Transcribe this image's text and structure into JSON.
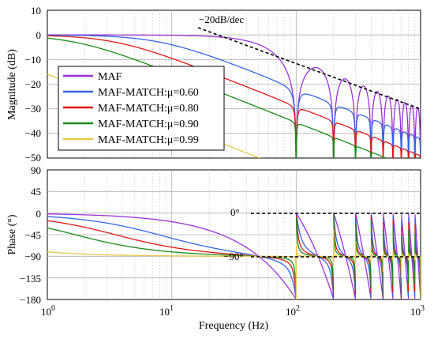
{
  "chart_data": [
    {
      "type": "line",
      "ylabel": "Magnitude (dB)",
      "x_scale": "log",
      "xlim": [
        1,
        1000
      ],
      "ylim": [
        -50,
        10
      ],
      "yticks": [
        "10",
        "0",
        "−10",
        "−20",
        "−30",
        "−40",
        "−50"
      ],
      "grid": true,
      "legend_position": "left-center",
      "annotation": "−20dB/dec",
      "series": [
        {
          "name": "MAF",
          "color": "#9b30d9",
          "mu": 0.0
        },
        {
          "name": "MAF-MATCH:μ=0.60",
          "color": "#3366e6",
          "mu": 0.6
        },
        {
          "name": "MAF-MATCH:μ=0.80",
          "color": "#e01818",
          "mu": 0.8
        },
        {
          "name": "MAF-MATCH:μ=0.90",
          "color": "#1a8a1a",
          "mu": 0.9
        },
        {
          "name": "MAF-MATCH:μ=0.99",
          "color": "#e8c84a",
          "mu": 0.99
        }
      ]
    },
    {
      "type": "line",
      "xlabel": "Frequency (Hz)",
      "ylabel": "Phase (°)",
      "x_scale": "log",
      "xlim": [
        1,
        1000
      ],
      "ylim": [
        -180,
        90
      ],
      "yticks": [
        "90",
        "45",
        "0",
        "−45",
        "−90",
        "−135",
        "−180"
      ],
      "xticks": [
        "0",
        "1",
        "2",
        "3"
      ],
      "grid": true,
      "annotations": [
        "0°",
        "−90°"
      ]
    }
  ]
}
